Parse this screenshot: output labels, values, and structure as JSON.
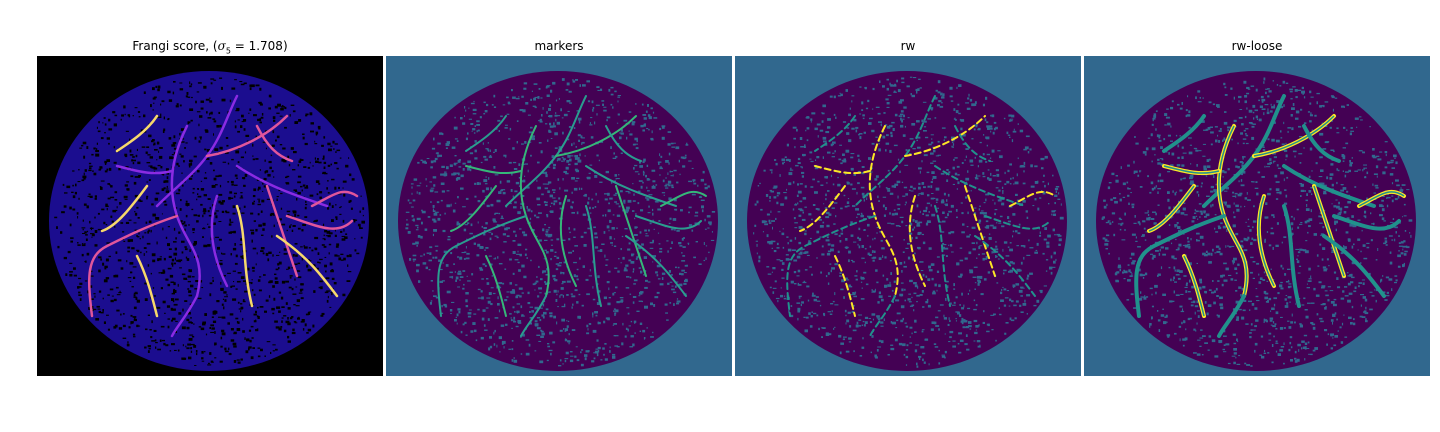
{
  "figure": {
    "panels": [
      {
        "id": "frangi",
        "title": "Frangi score, (",
        "title_sigma": "σ",
        "title_sub": "5",
        "title_rest": " = 1.708)",
        "colormap": "magma",
        "background": "#000000",
        "disc_color": "#1b0d8f",
        "vessel_colors": [
          "#8a2be2",
          "#e0569b",
          "#f7d86b"
        ]
      },
      {
        "id": "markers",
        "title": "markers",
        "colormap": "viridis",
        "background": "#31688e",
        "disc_color": "#440154",
        "vessel_colors": [
          "#2a9d8f",
          "#35b779"
        ]
      },
      {
        "id": "rw",
        "title": "rw",
        "colormap": "viridis",
        "background": "#31688e",
        "disc_color": "#440154",
        "vessel_colors": [
          "#21918c",
          "#fde725"
        ]
      },
      {
        "id": "rw-loose",
        "title": "rw-loose",
        "colormap": "viridis",
        "background": "#31688e",
        "disc_color": "#440154",
        "vessel_colors": [
          "#21918c",
          "#fde725"
        ]
      }
    ]
  }
}
